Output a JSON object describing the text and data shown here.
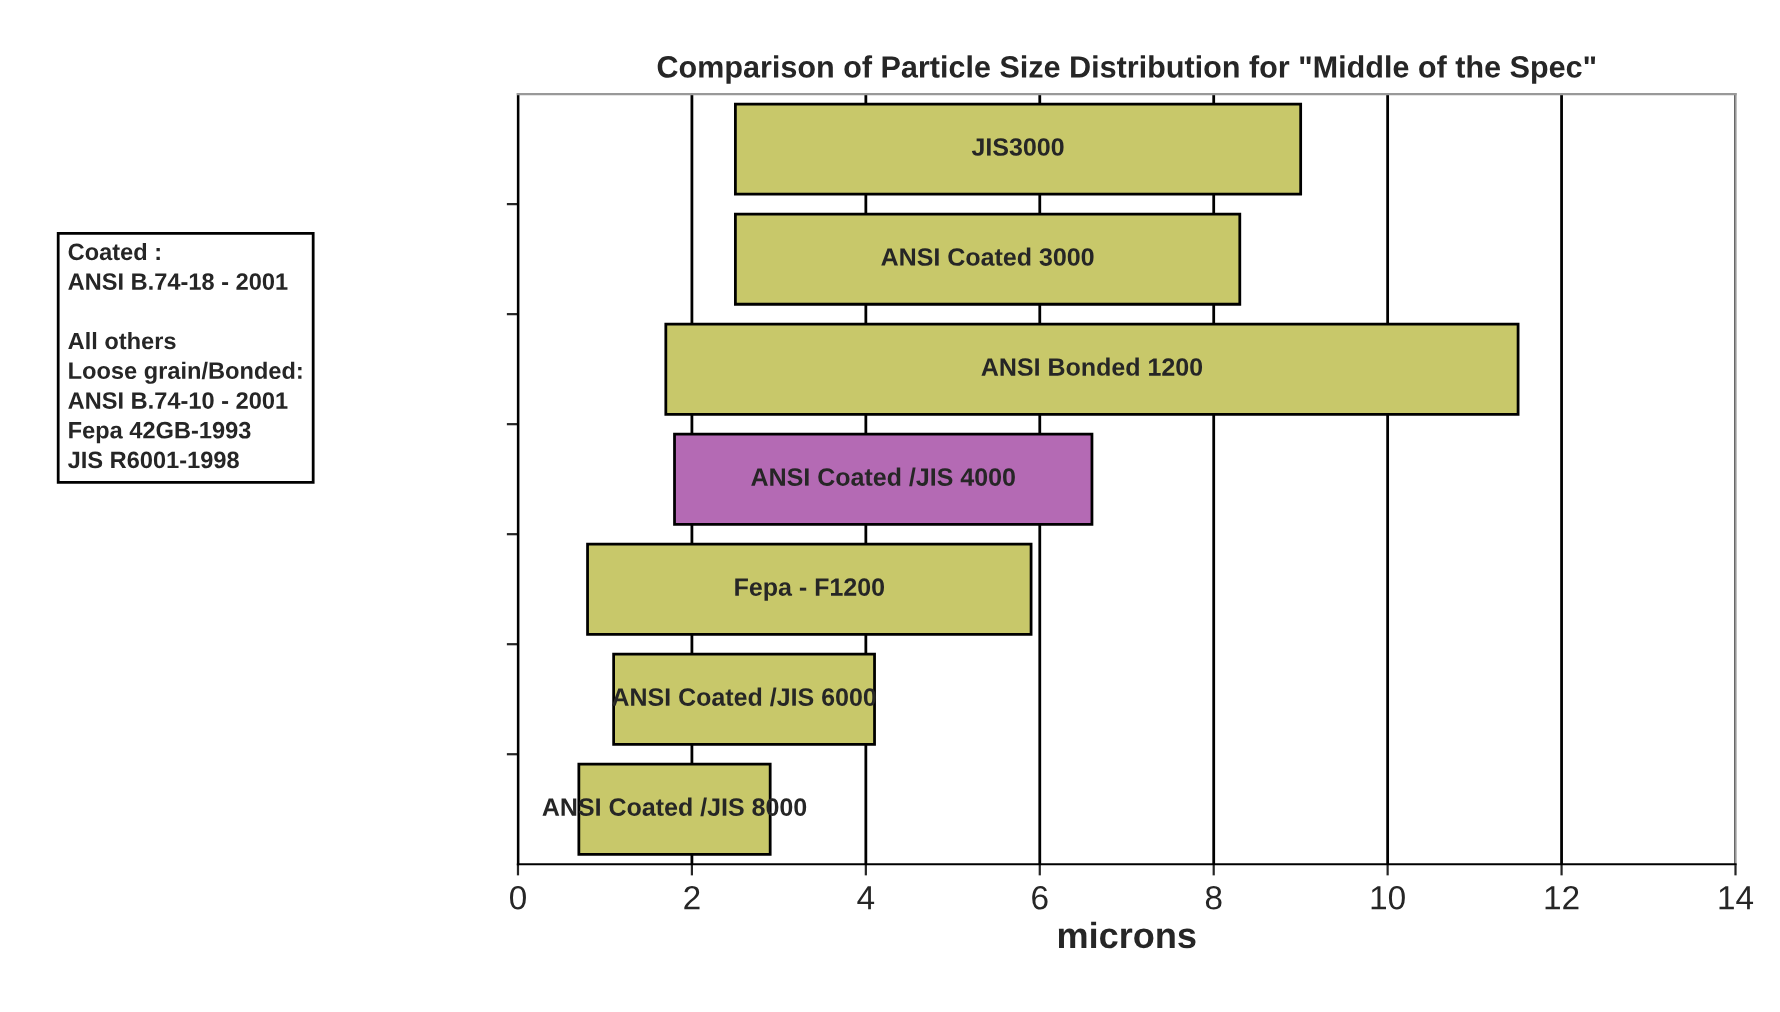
{
  "chart_data": {
    "type": "bar",
    "orientation": "horizontal",
    "title": "Comparison of Particle Size Distribution for \"Middle of the Spec\"",
    "xlabel": "microns",
    "categories": [
      "JIS3000",
      "ANSI Coated 3000",
      "ANSI Bonded 1200",
      "ANSI Coated /JIS 4000",
      "Fepa - F1200",
      "ANSI Coated /JIS 6000",
      "ANSI Coated /JIS 8000"
    ],
    "base": [
      2.5,
      2.5,
      1.7,
      1.8,
      0.8,
      1.1,
      0.7
    ],
    "values": [
      6.5,
      5.8,
      9.8,
      4.8,
      5.1,
      3.0,
      2.2
    ],
    "colors": [
      "#c8c86a",
      "#c8c86a",
      "#c8c86a",
      "#b46ab4",
      "#c8c86a",
      "#c8c86a",
      "#c8c86a"
    ],
    "xlim": [
      0,
      14
    ],
    "xticks": [
      0,
      2,
      4,
      6,
      8,
      10,
      12,
      14
    ],
    "grid": "x",
    "tick_labels": "x",
    "annotations": [
      "Coated :\nANSI B.74-18 - 2001\n\nAll others\nLoose grain/Bonded:\nANSI B.74-10 - 2001\nFepa 42GB-1993\nJIS R6001-1998"
    ]
  }
}
